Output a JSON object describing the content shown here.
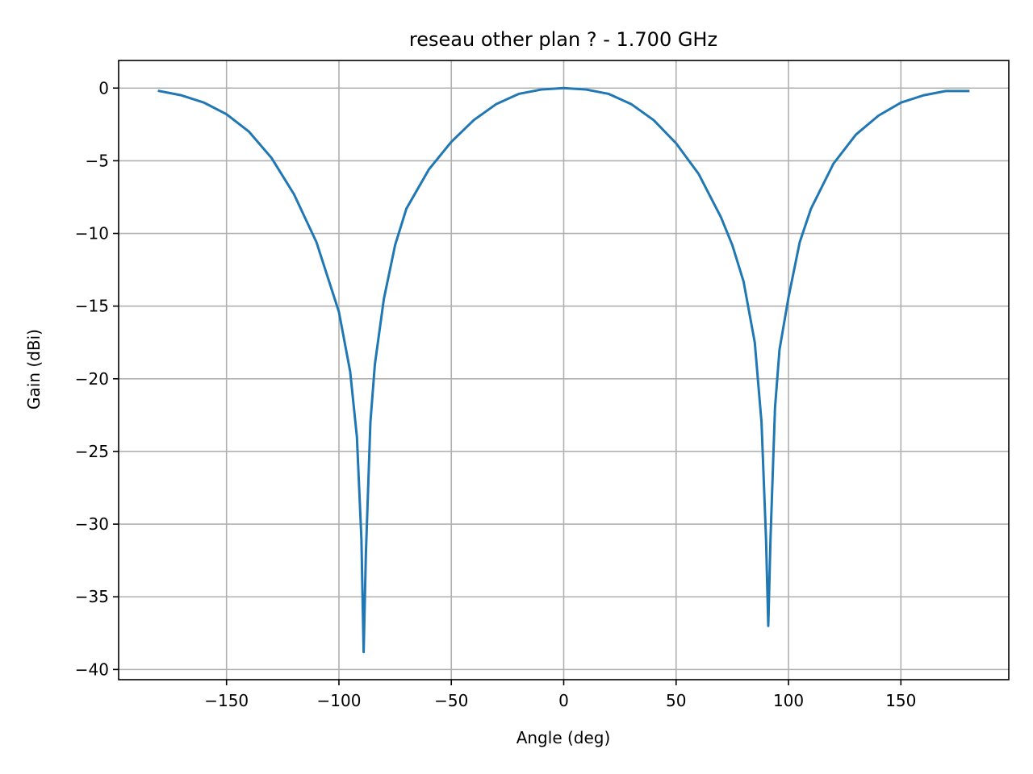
{
  "chart_data": {
    "type": "line",
    "title": "reseau other plan ? - 1.700 GHz",
    "xlabel": "Angle (deg)",
    "ylabel": "Gain (dBi)",
    "xlim": [
      -198,
      198
    ],
    "ylim": [
      -40.7,
      1.9
    ],
    "xticks": [
      -150,
      -100,
      -50,
      0,
      50,
      100,
      150
    ],
    "xtick_labels": [
      "−150",
      "−100",
      "−50",
      "0",
      "50",
      "100",
      "150"
    ],
    "yticks": [
      0,
      -5,
      -10,
      -15,
      -20,
      -25,
      -30,
      -35,
      -40
    ],
    "ytick_labels": [
      "0",
      "−5",
      "−10",
      "−15",
      "−20",
      "−25",
      "−30",
      "−35",
      "−40"
    ],
    "grid": true,
    "series": [
      {
        "color": "#1f77b4",
        "x": [
          -180,
          -170,
          -160,
          -150,
          -140,
          -130,
          -120,
          -110,
          -100,
          -95,
          -92,
          -90,
          -89,
          -88,
          -86,
          -84,
          -80,
          -75,
          -70,
          -60,
          -50,
          -40,
          -30,
          -20,
          -10,
          0,
          10,
          20,
          30,
          40,
          50,
          60,
          70,
          75,
          80,
          85,
          88,
          90,
          91,
          92,
          94,
          96,
          100,
          105,
          110,
          120,
          130,
          140,
          150,
          160,
          170,
          180
        ],
        "y": [
          -0.2,
          -0.5,
          -1.0,
          -1.8,
          -3.0,
          -4.8,
          -7.3,
          -10.6,
          -15.4,
          -19.5,
          -24.0,
          -31.0,
          -38.8,
          -32.0,
          -23.0,
          -19.0,
          -14.5,
          -10.8,
          -8.3,
          -5.6,
          -3.7,
          -2.2,
          -1.1,
          -0.4,
          -0.1,
          0.0,
          -0.1,
          -0.4,
          -1.1,
          -2.2,
          -3.8,
          -5.9,
          -8.9,
          -10.8,
          -13.3,
          -17.5,
          -23.0,
          -31.0,
          -37.0,
          -31.0,
          -22.0,
          -18.0,
          -14.4,
          -10.6,
          -8.3,
          -5.2,
          -3.2,
          -1.9,
          -1.0,
          -0.5,
          -0.2,
          -0.2
        ]
      }
    ]
  }
}
